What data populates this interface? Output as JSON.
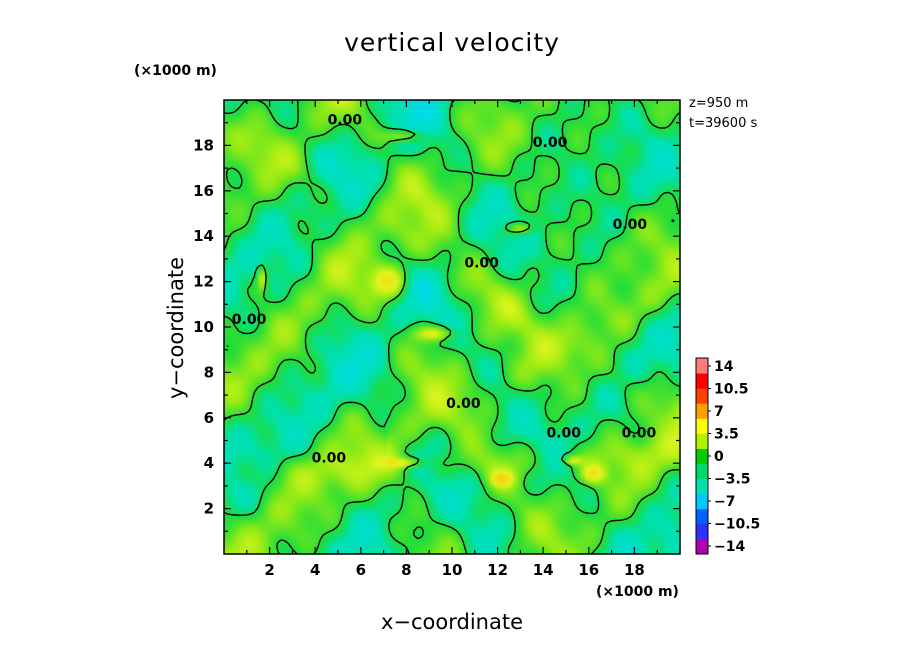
{
  "chart_data": {
    "type": "heatmap",
    "title": "vertical velocity",
    "xlabel": "x−coordinate",
    "ylabel": "y−coordinate",
    "x_unit": "(×1000 m)",
    "y_unit": "(×1000 m)",
    "annotations": {
      "z": "z=950  m",
      "t": "t=39600  s"
    },
    "xlim": [
      0,
      20
    ],
    "ylim": [
      0,
      20
    ],
    "x_ticks": [
      2,
      4,
      6,
      8,
      10,
      12,
      14,
      16,
      18
    ],
    "y_ticks": [
      2,
      4,
      6,
      8,
      10,
      12,
      14,
      16,
      18
    ],
    "contour_levels": [
      0
    ],
    "contour_labels": [
      {
        "x": 5.3,
        "y": 19.1,
        "text": "0.00"
      },
      {
        "x": 14.3,
        "y": 18.1,
        "text": "0.00"
      },
      {
        "x": 17.8,
        "y": 14.5,
        "text": "0.00"
      },
      {
        "x": 11.3,
        "y": 12.8,
        "text": "0.00"
      },
      {
        "x": 1.1,
        "y": 10.3,
        "text": "0.00"
      },
      {
        "x": 10.5,
        "y": 6.6,
        "text": "0.00"
      },
      {
        "x": 14.9,
        "y": 5.3,
        "text": "0.00"
      },
      {
        "x": 18.2,
        "y": 5.3,
        "text": "0.00"
      },
      {
        "x": 4.6,
        "y": 4.2,
        "text": "0.00"
      }
    ],
    "colorbar": {
      "labels": [
        "14",
        "10.5",
        "7",
        "3.5",
        "0",
        "−3.5",
        "−7",
        "−10.5",
        "−14"
      ],
      "values": [
        14,
        10.5,
        7,
        3.5,
        0,
        -3.5,
        -7,
        -10.5,
        -14
      ],
      "colors": [
        "#b000b0",
        "#3030ff",
        "#0060ff",
        "#00c8ff",
        "#00e0b0",
        "#00d86a",
        "#00cc00",
        "#b0f000",
        "#ffff00",
        "#ffa000",
        "#ff4000",
        "#ff0000",
        "#ff7a7a"
      ]
    },
    "updraft_regions": [
      {
        "x": 7.2,
        "y": 12.1,
        "rx": 0.8,
        "ry": 0.7,
        "w": 4.5
      },
      {
        "x": 9.2,
        "y": 9.8,
        "rx": 0.9,
        "ry": 0.3,
        "w": 4.0
      },
      {
        "x": 7.8,
        "y": 18.5,
        "rx": 0.8,
        "ry": 0.3,
        "w": 4.0
      },
      {
        "x": 12.9,
        "y": 14.4,
        "rx": 0.5,
        "ry": 0.25,
        "w": 4.0
      },
      {
        "x": 1.6,
        "y": 12.2,
        "rx": 0.2,
        "ry": 0.5,
        "w": 4.0
      },
      {
        "x": 12.1,
        "y": 3.4,
        "rx": 0.5,
        "ry": 0.35,
        "w": 4.2
      },
      {
        "x": 16.1,
        "y": 3.6,
        "rx": 0.5,
        "ry": 0.4,
        "w": 4.2
      },
      {
        "x": 15.2,
        "y": 4.2,
        "rx": 0.4,
        "ry": 0.2,
        "w": 3.8
      },
      {
        "x": 7.8,
        "y": 4.1,
        "rx": 0.8,
        "ry": 0.2,
        "w": 3.8
      }
    ],
    "grid": false
  }
}
